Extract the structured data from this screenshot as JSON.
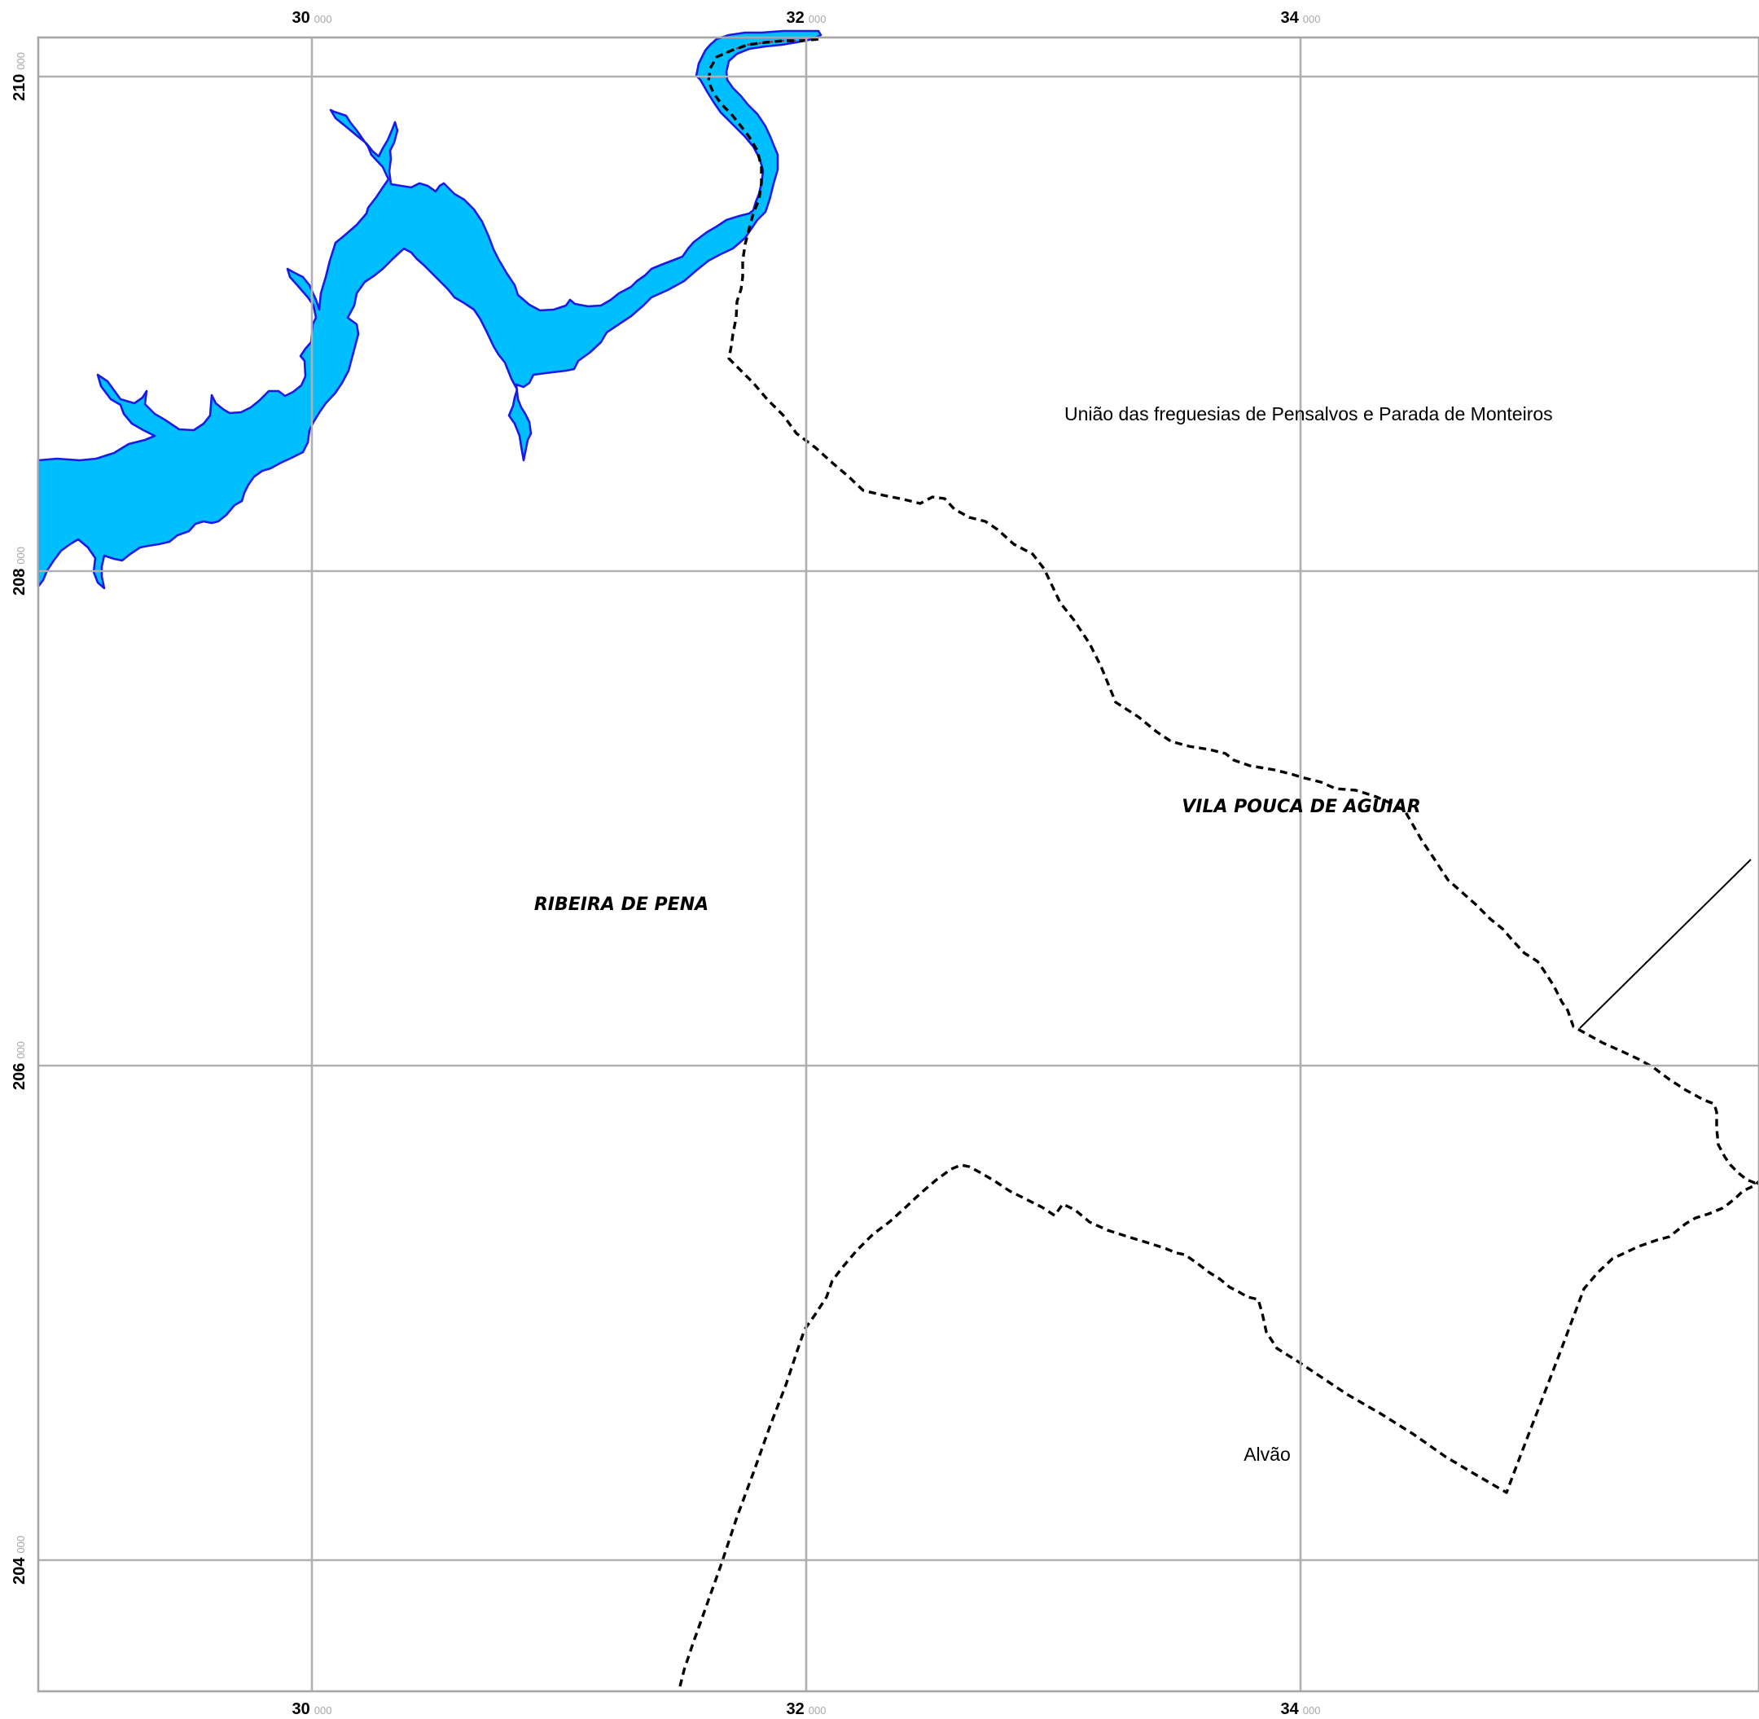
{
  "map": {
    "x_ticks": [
      {
        "major": "30",
        "minor": "000"
      },
      {
        "major": "32",
        "minor": "000"
      },
      {
        "major": "34",
        "minor": "000"
      }
    ],
    "y_ticks": [
      {
        "major": "210",
        "minor": "000"
      },
      {
        "major": "208",
        "minor": "000"
      },
      {
        "major": "206",
        "minor": "000"
      },
      {
        "major": "204",
        "minor": "000"
      }
    ],
    "labels": {
      "parish_north": "União das freguesias de Pensalvos e Parada de Monteiros",
      "municipality_east": "VILA POUCA DE AGUIAR",
      "municipality_west": "RIBEIRA DE PENA",
      "parish_south": "Alvão"
    },
    "colors": {
      "water_fill": "#00bfff",
      "water_outline": "#1a1ae6",
      "boundary": "#000000",
      "grid": "#b0b0b0"
    }
  }
}
